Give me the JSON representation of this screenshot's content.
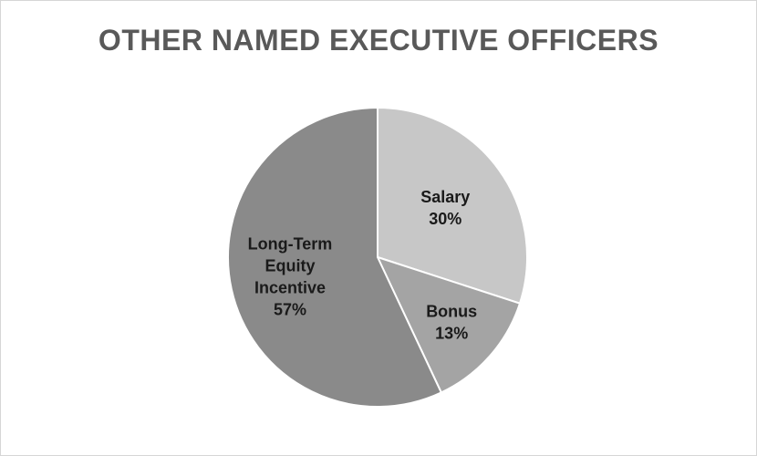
{
  "chart_data": {
    "type": "pie",
    "title": "OTHER NAMED EXECUTIVE OFFICERS",
    "slices": [
      {
        "label": "Salary",
        "pct_label": "30%",
        "value": 30,
        "color": "#c7c7c7"
      },
      {
        "label": "Bonus",
        "pct_label": "13%",
        "value": 13,
        "color": "#a4a4a4"
      },
      {
        "label": "Long-Term Equity Incentive",
        "label_lines": [
          "Long-Term",
          "Equity",
          "Incentive"
        ],
        "pct_label": "57%",
        "value": 57,
        "color": "#8a8a8a"
      }
    ],
    "start_angle": "12 o'clock",
    "direction": "clockwise",
    "legend": "none",
    "data_labels": "inside"
  }
}
